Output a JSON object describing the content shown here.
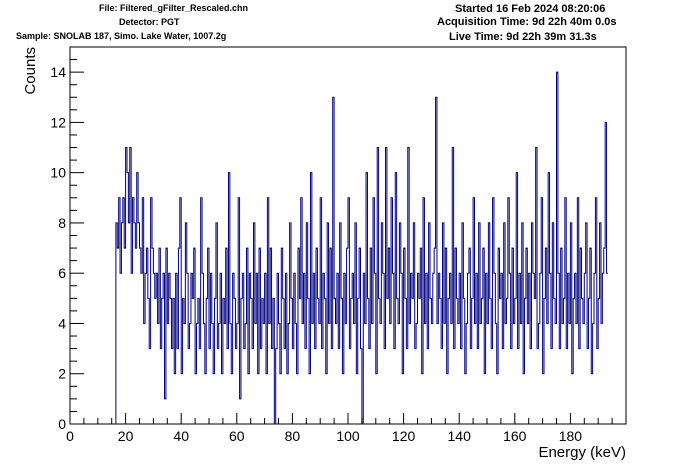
{
  "header": {
    "file": "File: Filtered_gFilter_Rescaled.chn",
    "detector": "Detector: PGT",
    "sample": "Sample: SNOLAB 187, Simo. Lake Water, 1007.2g",
    "started": "Started 16 Feb 2024 08:20:06",
    "acquisition": "Acquisition Time: 9d 22h 40m 0.0s",
    "live": "Live Time: 9d 22h 39m 31.3s"
  },
  "colors": {
    "histogram": "#00007f",
    "axes": "#000000",
    "background": "#ffffff"
  },
  "chart_data": {
    "type": "histogram",
    "title": "",
    "xlabel": "Energy (keV)",
    "ylabel": "Counts",
    "xlim": [
      0,
      200
    ],
    "ylim": [
      0,
      15
    ],
    "x_ticks": [
      0,
      20,
      40,
      60,
      80,
      100,
      120,
      140,
      160,
      180
    ],
    "y_ticks": [
      0,
      2,
      4,
      6,
      8,
      10,
      12,
      14
    ],
    "grid": false,
    "legend": "none",
    "series": [
      {
        "bin_start": 16.5,
        "bin_width": 0.5,
        "counts": [
          8,
          7,
          9,
          6,
          8,
          9,
          7,
          11,
          10,
          8,
          11,
          6,
          9,
          8,
          7,
          10,
          8,
          7,
          6,
          9,
          4,
          6,
          7,
          5,
          3,
          9,
          7,
          6,
          5,
          6,
          4,
          7,
          3,
          5,
          6,
          1,
          7,
          4,
          6,
          5,
          3,
          5,
          2,
          6,
          3,
          7,
          9,
          2,
          5,
          4,
          8,
          6,
          3,
          4,
          6,
          5,
          7,
          2,
          4,
          5,
          3,
          9,
          6,
          4,
          2,
          5,
          7,
          3,
          6,
          4,
          2,
          5,
          8,
          3,
          4,
          6,
          2,
          5,
          4,
          7,
          3,
          10,
          4,
          2,
          6,
          5,
          3,
          4,
          9,
          1,
          5,
          6,
          3,
          4,
          7,
          2,
          6,
          5,
          3,
          8,
          4,
          6,
          2,
          7,
          3,
          5,
          4,
          6,
          2,
          9,
          4,
          7,
          3,
          5,
          0,
          3,
          6,
          4,
          2,
          7,
          5,
          3,
          6,
          2,
          4,
          8,
          5,
          3,
          6,
          4,
          2,
          7,
          5,
          9,
          4,
          6,
          3,
          8,
          5,
          2,
          10,
          4,
          6,
          3,
          7,
          5,
          4,
          9,
          3,
          6,
          5,
          2,
          8,
          4,
          7,
          3,
          13,
          5,
          4,
          6,
          3,
          8,
          5,
          2,
          6,
          4,
          7,
          9,
          3,
          5,
          6,
          4,
          8,
          2,
          5,
          7,
          3,
          0,
          6,
          4,
          10,
          5,
          3,
          7,
          4,
          9,
          6,
          2,
          11,
          5,
          4,
          8,
          6,
          3,
          11,
          5,
          7,
          4,
          9,
          6,
          3,
          10,
          5,
          4,
          8,
          6,
          2,
          7,
          5,
          3,
          11,
          4,
          6,
          5,
          8,
          3,
          4,
          6,
          5,
          7,
          2,
          9,
          4,
          6,
          3,
          8,
          5,
          4,
          6,
          7,
          13,
          4,
          6,
          5,
          3,
          8,
          4,
          7,
          2,
          5,
          6,
          4,
          11,
          3,
          7,
          5,
          4,
          6,
          3,
          8,
          5,
          2,
          4,
          6,
          7,
          3,
          5,
          9,
          4,
          6,
          3,
          8,
          4,
          5,
          7,
          2,
          6,
          4,
          8,
          5,
          3,
          9,
          6,
          4,
          2,
          7,
          5,
          6,
          3,
          8,
          4,
          5,
          9,
          6,
          3,
          7,
          4,
          5,
          10,
          3,
          6,
          4,
          8,
          2,
          5,
          7,
          4,
          6,
          3,
          8,
          6,
          5,
          11,
          3,
          4,
          6,
          9,
          2,
          5,
          7,
          4,
          10,
          6,
          3,
          8,
          5,
          4,
          14,
          6,
          3,
          7,
          4,
          5,
          9,
          3,
          6,
          4,
          8,
          2,
          5,
          6,
          4,
          9,
          3,
          7,
          5,
          4,
          6,
          8,
          3,
          5,
          7,
          2,
          4,
          6,
          9,
          3,
          5,
          8,
          4,
          6,
          7,
          12,
          6
        ]
      }
    ]
  }
}
